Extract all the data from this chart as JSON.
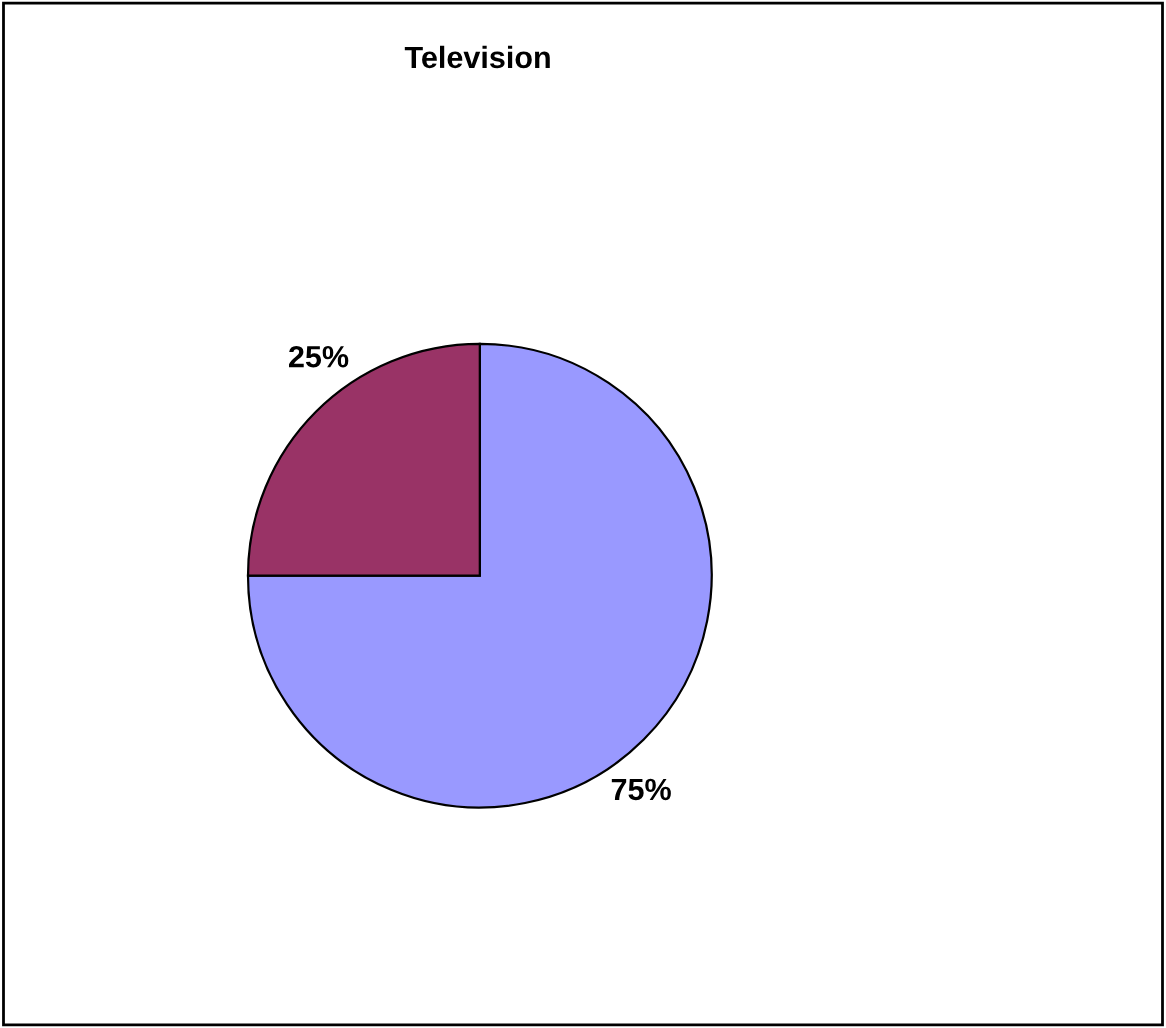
{
  "chart_data": {
    "type": "pie",
    "title": "Television",
    "categories": [
      null,
      null
    ],
    "values": [
      75,
      25
    ],
    "colors": [
      "#9999ff",
      "#993366"
    ],
    "value_labels": [
      "75%",
      "25%"
    ],
    "legend": false
  }
}
